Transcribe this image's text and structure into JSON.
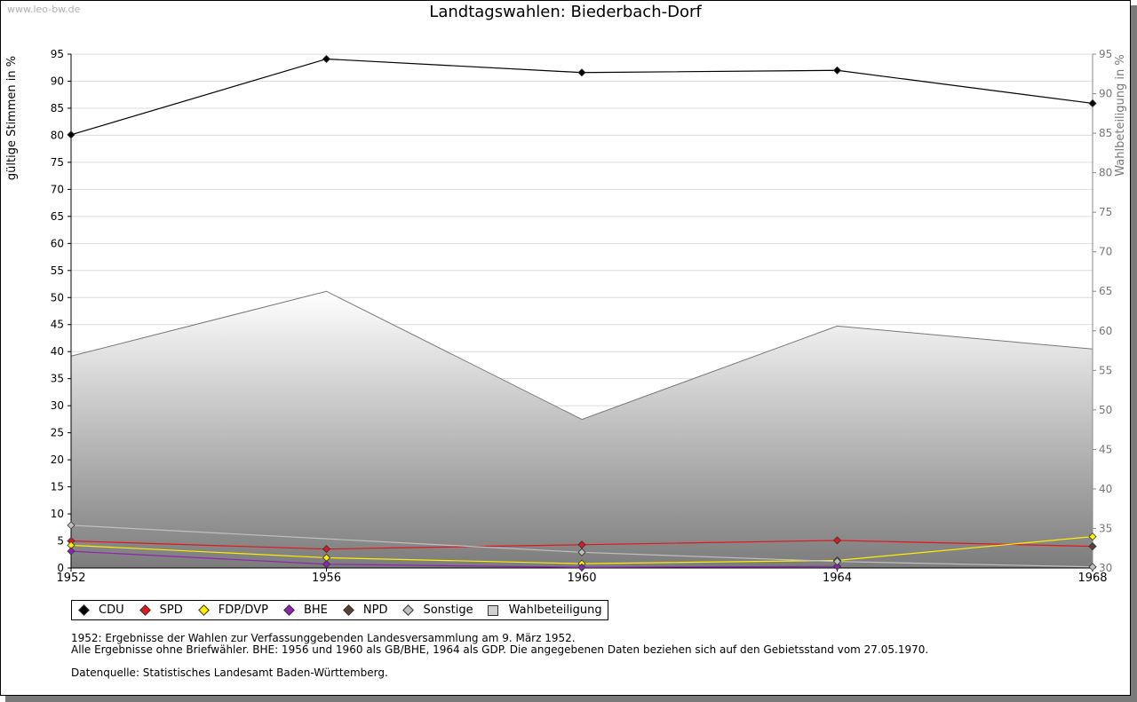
{
  "watermark": "www.leo-bw.de",
  "chart_data": {
    "type": "line",
    "title": "Landtagswahlen: Biederbach-Dorf",
    "ylabel": "gültige Stimmen in %",
    "y2label": "Wahlbeteiligung in %",
    "categories": [
      "1952",
      "1956",
      "1960",
      "1964",
      "1968"
    ],
    "ylim": [
      0,
      95
    ],
    "yticks": [
      0,
      5,
      10,
      15,
      20,
      25,
      30,
      35,
      40,
      45,
      50,
      55,
      60,
      65,
      70,
      75,
      80,
      85,
      90,
      95
    ],
    "y2lim": [
      30,
      95
    ],
    "y2ticks": [
      30,
      35,
      40,
      45,
      50,
      55,
      60,
      65,
      70,
      75,
      80,
      85,
      90,
      95
    ],
    "grid": true,
    "area": {
      "name": "Wahlbeteiligung",
      "axis": "right",
      "values": [
        56.8,
        65.0,
        48.8,
        60.6,
        57.7
      ],
      "color": "#d0d0d0"
    },
    "series": [
      {
        "name": "CDU",
        "color": "#000000",
        "values": [
          80.1,
          94.1,
          91.6,
          92.0,
          85.9
        ]
      },
      {
        "name": "SPD",
        "color": "#e3161b",
        "values": [
          5.0,
          3.5,
          4.3,
          5.1,
          4.0
        ]
      },
      {
        "name": "FDP/DVP",
        "color": "#ffee00",
        "values": [
          4.2,
          1.9,
          0.8,
          1.4,
          5.8
        ]
      },
      {
        "name": "BHE",
        "color": "#8e24b0",
        "values": [
          3.1,
          0.7,
          0.1,
          0.3,
          null
        ]
      },
      {
        "name": "NPD",
        "color": "#5c4033",
        "values": [
          null,
          null,
          null,
          null,
          4.0
        ]
      },
      {
        "name": "Sonstige",
        "color": "#c0c0c0",
        "values": [
          7.9,
          null,
          2.9,
          1.2,
          0.2
        ]
      }
    ],
    "legend_position": "bottom-left"
  },
  "legend": [
    {
      "label": "CDU",
      "color": "#000000",
      "kind": "marker"
    },
    {
      "label": "SPD",
      "color": "#e3161b",
      "kind": "marker"
    },
    {
      "label": "FDP/DVP",
      "color": "#ffee00",
      "kind": "marker"
    },
    {
      "label": "BHE",
      "color": "#8e24b0",
      "kind": "marker"
    },
    {
      "label": "NPD",
      "color": "#5c4033",
      "kind": "marker"
    },
    {
      "label": "Sonstige",
      "color": "#c0c0c0",
      "kind": "marker"
    },
    {
      "label": "Wahlbeteiligung",
      "color": "#d0d0d0",
      "kind": "box"
    }
  ],
  "notes": {
    "line1": "1952: Ergebnisse der Wahlen zur Verfassunggebenden Landesversammlung am 9. März 1952.",
    "line2": "Alle Ergebnisse ohne Briefwähler. BHE: 1956 und 1960 als GB/BHE, 1964 als GDP. Die angegebenen Daten beziehen sich auf den Gebietsstand vom 27.05.1970.",
    "source": "Datenquelle: Statistisches Landesamt Baden-Württemberg."
  }
}
